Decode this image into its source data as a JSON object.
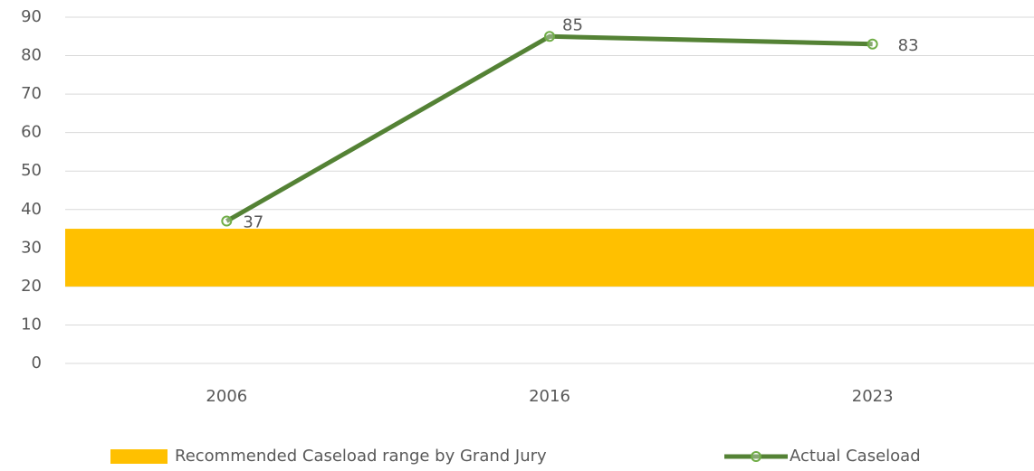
{
  "chart_data": {
    "type": "line",
    "categories": [
      "2006",
      "2016",
      "2023"
    ],
    "series": [
      {
        "name": "Actual Caseload",
        "color": "#548235",
        "marker_color": "#70ad47",
        "values": [
          37,
          85,
          83
        ]
      }
    ],
    "band": {
      "name": "Recommended Caseload range by Grand Jury",
      "color": "#ffc000",
      "range": [
        20,
        35
      ]
    },
    "ylim": [
      0,
      90
    ],
    "yticks": [
      0,
      10,
      20,
      30,
      40,
      50,
      60,
      70,
      80,
      90
    ],
    "grid": true,
    "legend": "bottom"
  }
}
